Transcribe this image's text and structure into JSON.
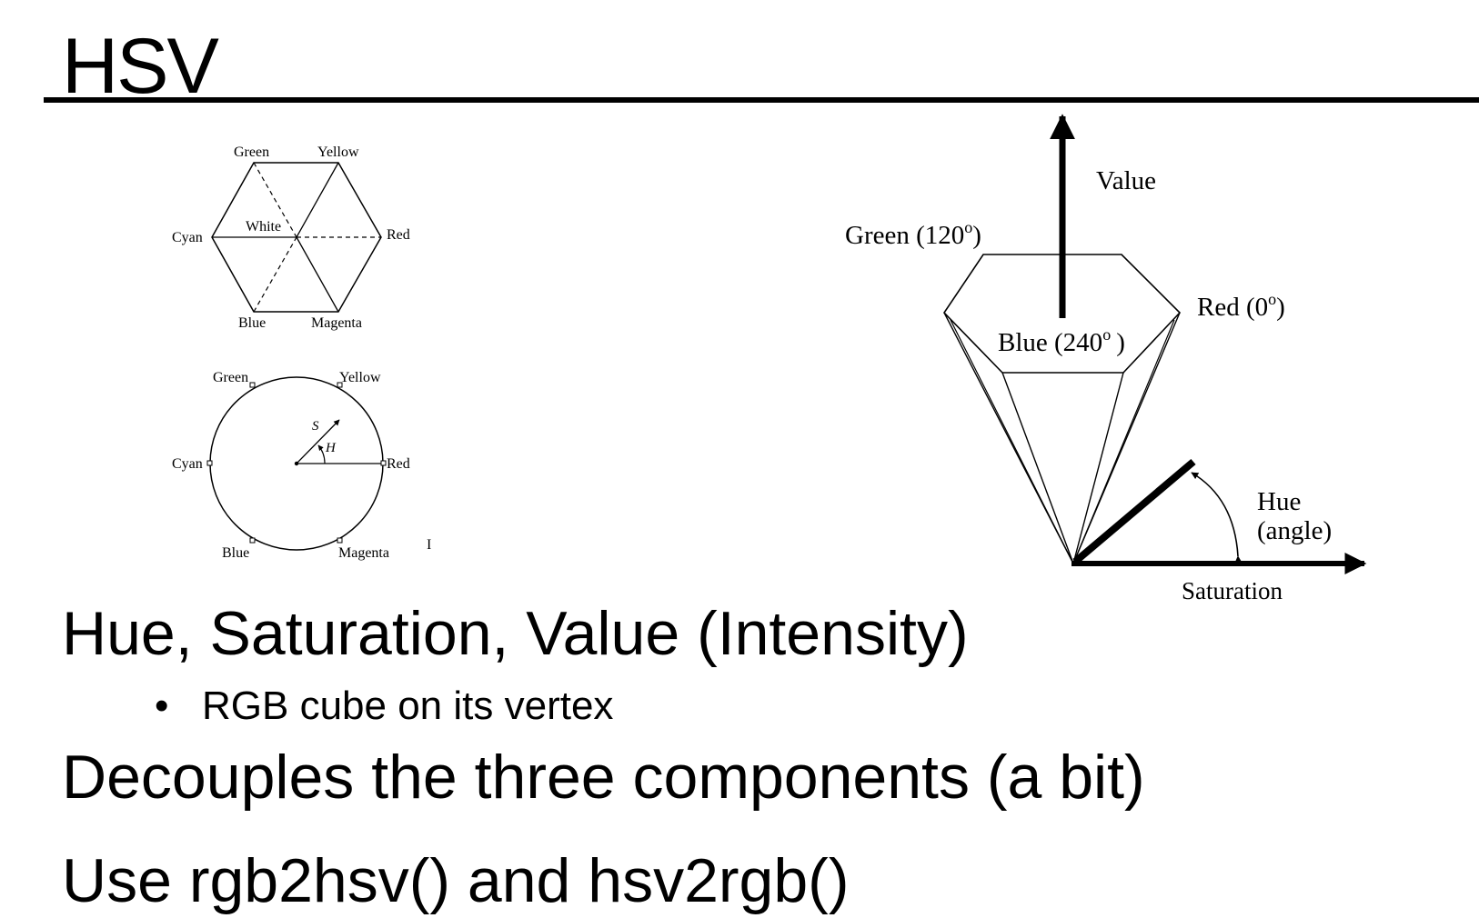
{
  "slide": {
    "title": "HSV",
    "bullets": [
      "Hue, Saturation, Value (Intensity)",
      "Decouples the three components (a bit)",
      "Use rgb2hsv() and hsv2rgb()"
    ],
    "sub_bullets": [
      "RGB cube on its vertex"
    ],
    "bullet_glyph": "•"
  },
  "hexagon_diagram": {
    "labels": {
      "green": "Green",
      "yellow": "Yellow",
      "cyan": "Cyan",
      "white": "White",
      "red": "Red",
      "blue": "Blue",
      "magenta": "Magenta"
    }
  },
  "circle_diagram": {
    "labels": {
      "green": "Green",
      "yellow": "Yellow",
      "cyan": "Cyan",
      "red": "Red",
      "blue": "Blue",
      "magenta": "Magenta",
      "s": "S",
      "h": "H",
      "stray_mark": "I"
    }
  },
  "hexcone_diagram": {
    "labels": {
      "value": "Value",
      "green": "Green (120",
      "red": "Red (0",
      "blue": "Blue (240",
      "degree": "o",
      "close_paren": ")",
      "hue": "Hue",
      "hue_sub": "(angle)",
      "saturation": "Saturation"
    }
  }
}
